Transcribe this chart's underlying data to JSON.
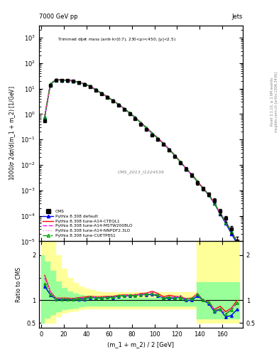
{
  "title_main": "Trimmed dijet mass (anti-k_{T}(0.7), 230<p_{T}<450, |y|<2.5)",
  "header_left": "7000 GeV pp",
  "header_right": "Jets",
  "xlabel": "(m_1 + m_2) / 2 [GeV]",
  "ylabel_main": "1000/σ 2dσ/d(m_1 + m_2) [1/GeV]",
  "ylabel_ratio": "Ratio to CMS",
  "watermark": "CMS_2013_I1224539",
  "right_label_top": "Rivet 3.1.10, ≥ 2.6M events",
  "right_label_bot": "mcplots.cern.ch [arXiv:1306.3436]",
  "x_data": [
    3,
    8,
    13,
    18,
    23,
    28,
    33,
    38,
    43,
    48,
    53,
    58,
    63,
    68,
    73,
    78,
    83,
    88,
    93,
    98,
    103,
    108,
    113,
    118,
    123,
    128,
    133,
    138,
    143,
    148,
    153,
    158,
    163,
    168,
    173
  ],
  "cms_y": [
    0.55,
    13.0,
    21.5,
    21.0,
    20.5,
    19.5,
    17.0,
    14.5,
    11.5,
    8.5,
    6.2,
    4.5,
    3.2,
    2.2,
    1.5,
    1.0,
    0.65,
    0.4,
    0.25,
    0.15,
    0.1,
    0.065,
    0.038,
    0.022,
    0.012,
    0.007,
    0.004,
    0.002,
    0.0012,
    0.0007,
    0.0004,
    0.00015,
    8e-05,
    3e-05,
    1e-05
  ],
  "cms_yerr": [
    0.05,
    1.0,
    1.5,
    1.5,
    1.5,
    1.4,
    1.2,
    1.0,
    0.8,
    0.6,
    0.5,
    0.35,
    0.25,
    0.18,
    0.12,
    0.08,
    0.055,
    0.035,
    0.022,
    0.013,
    0.009,
    0.006,
    0.004,
    0.0025,
    0.0015,
    0.001,
    0.0006,
    0.0003,
    0.0002,
    0.00012,
    8e-05,
    4e-05,
    2e-05,
    1e-05,
    5e-06
  ],
  "pythia_default_y": [
    0.72,
    14.5,
    22.0,
    21.5,
    21.0,
    19.8,
    17.5,
    15.0,
    12.2,
    9.0,
    6.5,
    4.8,
    3.4,
    2.4,
    1.65,
    1.1,
    0.72,
    0.45,
    0.28,
    0.17,
    0.11,
    0.068,
    0.04,
    0.023,
    0.013,
    0.007,
    0.004,
    0.0022,
    0.0012,
    0.00065,
    0.0003,
    0.00012,
    5e-05,
    2e-05,
    8e-06
  ],
  "pythia_cteq_y": [
    0.85,
    15.5,
    22.5,
    22.0,
    21.5,
    20.2,
    18.0,
    15.5,
    12.5,
    9.2,
    6.7,
    4.9,
    3.5,
    2.45,
    1.68,
    1.12,
    0.73,
    0.46,
    0.29,
    0.18,
    0.115,
    0.07,
    0.042,
    0.024,
    0.013,
    0.0073,
    0.0042,
    0.0023,
    0.0012,
    0.00068,
    0.00032,
    0.00013,
    6e-05,
    2.5e-05,
    1e-05
  ],
  "pythia_mstw_y": [
    0.82,
    15.2,
    22.3,
    21.8,
    21.2,
    20.0,
    17.8,
    15.2,
    12.3,
    9.1,
    6.6,
    4.85,
    3.45,
    2.42,
    1.66,
    1.11,
    0.72,
    0.45,
    0.285,
    0.175,
    0.112,
    0.068,
    0.041,
    0.0235,
    0.0128,
    0.0072,
    0.0041,
    0.0022,
    0.0012,
    0.00067,
    0.00031,
    0.00012,
    5.6e-05,
    2.4e-05,
    9.5e-06
  ],
  "pythia_nnpdf_y": [
    0.83,
    15.3,
    22.4,
    21.9,
    21.3,
    20.1,
    17.9,
    15.3,
    12.35,
    9.15,
    6.65,
    4.87,
    3.47,
    2.43,
    1.67,
    1.115,
    0.725,
    0.455,
    0.287,
    0.177,
    0.113,
    0.069,
    0.0415,
    0.0237,
    0.0129,
    0.0073,
    0.0042,
    0.0023,
    0.00122,
    0.00068,
    0.000315,
    0.000125,
    5.7e-05,
    2.45e-05,
    9.6e-06
  ],
  "pythia_cuetp_y": [
    0.75,
    14.8,
    22.1,
    21.6,
    21.1,
    19.9,
    17.6,
    15.1,
    12.25,
    9.05,
    6.55,
    4.82,
    3.43,
    2.41,
    1.655,
    1.105,
    0.718,
    0.448,
    0.283,
    0.173,
    0.111,
    0.068,
    0.0408,
    0.0234,
    0.01275,
    0.0072,
    0.00415,
    0.00226,
    0.0012,
    0.00067,
    0.00031,
    0.000122,
    5.6e-05,
    2.38e-05,
    9.4e-06
  ],
  "ratio_default_y": [
    1.31,
    1.12,
    1.02,
    1.02,
    1.02,
    1.02,
    1.03,
    1.03,
    1.06,
    1.06,
    1.05,
    1.07,
    1.06,
    1.09,
    1.1,
    1.1,
    1.11,
    1.13,
    1.12,
    1.13,
    1.1,
    1.05,
    1.05,
    1.05,
    1.08,
    1.0,
    1.0,
    1.1,
    1.0,
    0.93,
    0.75,
    0.8,
    0.63,
    0.67,
    0.8
  ],
  "ratio_cteq_y": [
    1.55,
    1.19,
    1.05,
    1.05,
    1.05,
    1.04,
    1.06,
    1.07,
    1.09,
    1.08,
    1.08,
    1.09,
    1.09,
    1.11,
    1.12,
    1.12,
    1.12,
    1.15,
    1.16,
    1.2,
    1.15,
    1.08,
    1.11,
    1.09,
    1.08,
    1.04,
    1.05,
    1.15,
    1.0,
    0.97,
    0.8,
    0.87,
    0.75,
    0.83,
    1.0
  ],
  "ratio_mstw_y": [
    1.49,
    1.17,
    1.04,
    1.04,
    1.03,
    1.03,
    1.05,
    1.05,
    1.07,
    1.07,
    1.06,
    1.08,
    1.08,
    1.1,
    1.11,
    1.11,
    1.11,
    1.13,
    1.14,
    1.17,
    1.12,
    1.05,
    1.08,
    1.07,
    1.07,
    1.03,
    1.03,
    1.15,
    1.0,
    0.96,
    0.78,
    0.8,
    0.7,
    0.8,
    0.95
  ],
  "ratio_nnpdf_y": [
    1.51,
    1.18,
    1.04,
    1.04,
    1.04,
    1.03,
    1.05,
    1.05,
    1.07,
    1.08,
    1.07,
    1.08,
    1.08,
    1.1,
    1.11,
    1.12,
    1.11,
    1.14,
    1.15,
    1.18,
    1.13,
    1.06,
    1.09,
    1.08,
    1.08,
    1.04,
    1.05,
    1.15,
    1.02,
    0.97,
    0.79,
    0.83,
    0.71,
    0.82,
    0.96
  ],
  "ratio_cuetp_y": [
    1.36,
    1.14,
    1.03,
    1.03,
    1.03,
    1.02,
    1.04,
    1.04,
    1.07,
    1.06,
    1.06,
    1.07,
    1.07,
    1.1,
    1.1,
    1.11,
    1.1,
    1.12,
    1.13,
    1.15,
    1.11,
    1.05,
    1.07,
    1.06,
    1.06,
    1.03,
    1.04,
    1.13,
    1.0,
    0.96,
    0.78,
    0.81,
    0.7,
    0.79,
    0.94
  ],
  "band_x": [
    0,
    5,
    10,
    15,
    20,
    25,
    30,
    35,
    40,
    45,
    50,
    55,
    60,
    65,
    70,
    75,
    80,
    85,
    90,
    95,
    100,
    105,
    110,
    115,
    120,
    125,
    130,
    135,
    140,
    145,
    150,
    155,
    160,
    165,
    170,
    175
  ],
  "band_yellow_lo": [
    0.5,
    0.5,
    0.5,
    0.65,
    0.72,
    0.75,
    0.78,
    0.8,
    0.82,
    0.82,
    0.82,
    0.82,
    0.82,
    0.82,
    0.82,
    0.82,
    0.82,
    0.82,
    0.82,
    0.82,
    0.82,
    0.82,
    0.82,
    0.82,
    0.82,
    0.82,
    0.82,
    0.82,
    0.5,
    0.5,
    0.5,
    0.5,
    0.5,
    0.5,
    0.5,
    0.5
  ],
  "band_yellow_hi": [
    2.5,
    2.5,
    2.5,
    2.0,
    1.7,
    1.5,
    1.38,
    1.3,
    1.25,
    1.22,
    1.2,
    1.18,
    1.18,
    1.18,
    1.18,
    1.18,
    1.18,
    1.18,
    1.18,
    1.18,
    1.18,
    1.18,
    1.18,
    1.18,
    1.18,
    1.18,
    1.18,
    1.18,
    2.5,
    2.5,
    2.5,
    2.5,
    2.5,
    2.5,
    2.5,
    2.5
  ],
  "band_green_lo": [
    0.5,
    0.62,
    0.7,
    0.75,
    0.8,
    0.82,
    0.84,
    0.86,
    0.88,
    0.88,
    0.88,
    0.88,
    0.88,
    0.88,
    0.88,
    0.88,
    0.88,
    0.88,
    0.88,
    0.88,
    0.88,
    0.88,
    0.88,
    0.88,
    0.88,
    0.88,
    0.88,
    0.88,
    0.6,
    0.6,
    0.6,
    0.6,
    0.6,
    0.6,
    0.6,
    0.6
  ],
  "band_green_hi": [
    2.0,
    1.85,
    1.65,
    1.42,
    1.28,
    1.2,
    1.15,
    1.12,
    1.1,
    1.08,
    1.06,
    1.05,
    1.05,
    1.05,
    1.05,
    1.05,
    1.05,
    1.05,
    1.05,
    1.05,
    1.05,
    1.05,
    1.05,
    1.05,
    1.05,
    1.05,
    1.05,
    1.05,
    1.4,
    1.4,
    1.4,
    1.4,
    1.4,
    1.4,
    1.4,
    1.4
  ],
  "color_default": "#0000ff",
  "color_cteq": "#ff0000",
  "color_mstw": "#ff00ff",
  "color_nnpdf": "#ff88ff",
  "color_cuetp": "#00aa00",
  "color_cms": "#000000",
  "color_yellow": "#ffff99",
  "color_green": "#99ff99"
}
